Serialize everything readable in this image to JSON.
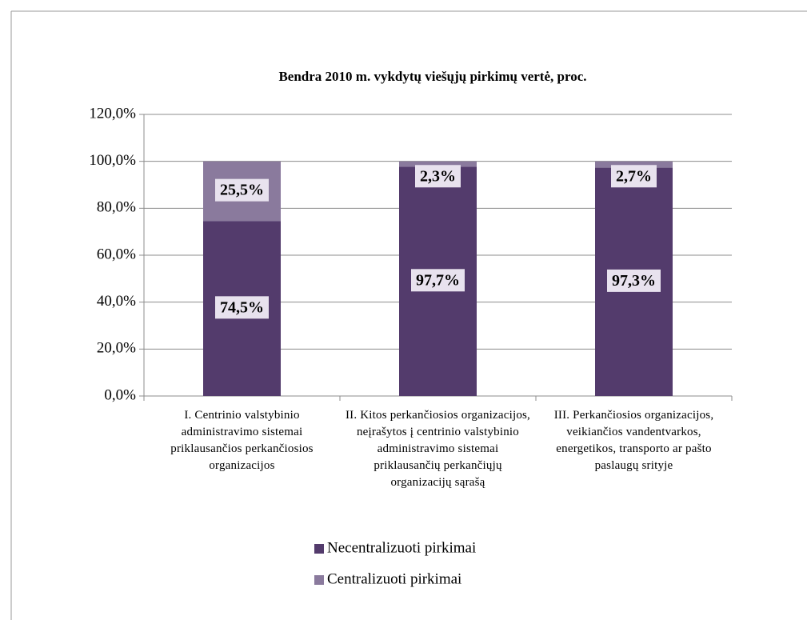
{
  "chart_data": {
    "type": "stacked_bar",
    "title": "Bendra 2010 m. vykdytų viešųjų pirkimų vertė, proc.",
    "categories": [
      "I. Centrinio valstybinio administravimo sistemai priklausančios perkančiosios organizacijos",
      "II. Kitos perkančiosios organizacijos, neįrašytos į centrinio valstybinio administravimo sistemai priklausančių perkančiųjų organizacijų sąrašą",
      "III. Perkančiosios organizacijos, veikiančios vandentvarkos, energetikos, transporto ar pašto paslaugų srityje"
    ],
    "series": [
      {
        "name": "Necentralizuoti pirkimai",
        "color": "#533b6c",
        "values": [
          74.5,
          97.7,
          97.3
        ],
        "value_labels": [
          "74,5%",
          "97,7%",
          "97,3%"
        ]
      },
      {
        "name": "Centralizuoti pirkimai",
        "color": "#8a7a9d",
        "values": [
          25.5,
          2.3,
          2.7
        ],
        "value_labels": [
          "25,5%",
          "2,3%",
          "2,7%"
        ]
      }
    ],
    "ylim": [
      0,
      120
    ],
    "yticks": [
      {
        "value": 0,
        "label": "0,0%"
      },
      {
        "value": 20,
        "label": "20,0%"
      },
      {
        "value": 40,
        "label": "40,0%"
      },
      {
        "value": 60,
        "label": "60,0%"
      },
      {
        "value": 80,
        "label": "80,0%"
      },
      {
        "value": 100,
        "label": "100,0%"
      },
      {
        "value": 120,
        "label": "120,0%"
      }
    ],
    "grid": true,
    "legend": "bottom"
  }
}
